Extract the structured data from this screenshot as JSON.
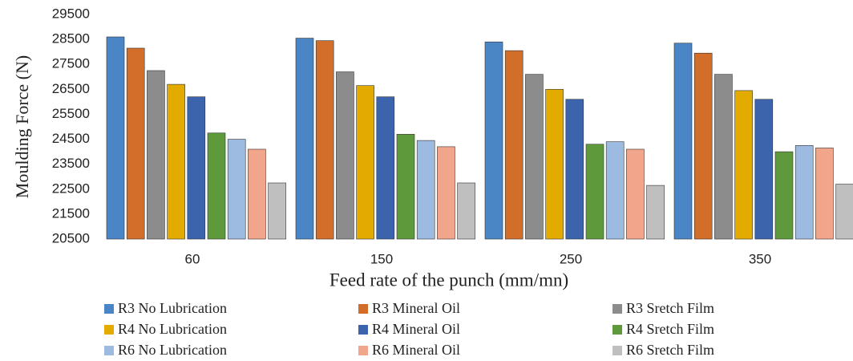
{
  "chart_data": {
    "type": "bar",
    "y_label": "Moulding Force (N)",
    "x_label": "Feed rate of the punch (mm/mn)",
    "categories": [
      "60",
      "150",
      "250",
      "350"
    ],
    "series": [
      {
        "name": "R3 No Lubrication",
        "color": "#4a86c5",
        "values": [
          28600,
          28550,
          28400,
          28350
        ]
      },
      {
        "name": "R3 Mineral Oil",
        "color": "#d36e2a",
        "values": [
          28150,
          28450,
          28050,
          27950
        ]
      },
      {
        "name": "R3 Sretch Film",
        "color": "#8c8c8c",
        "values": [
          27250,
          27200,
          27100,
          27100
        ]
      },
      {
        "name": "R4 No Lubrication",
        "color": "#e3aa00",
        "values": [
          26700,
          26650,
          26500,
          26450
        ]
      },
      {
        "name": "R4 Mineral Oil",
        "color": "#3b64ad",
        "values": [
          26200,
          26200,
          26100,
          26100
        ]
      },
      {
        "name": "R4 Sretch Film",
        "color": "#5e9a3c",
        "values": [
          24750,
          24700,
          24300,
          24000
        ]
      },
      {
        "name": "R6 No Lubrication",
        "color": "#9dbbe0",
        "values": [
          24500,
          24450,
          24400,
          24250
        ]
      },
      {
        "name": "R6 Mineral Oil",
        "color": "#f1a58a",
        "values": [
          24100,
          24200,
          24100,
          24150
        ]
      },
      {
        "name": "R6 Sretch Film",
        "color": "#bfbfbf",
        "values": [
          22750,
          22750,
          22650,
          22700
        ]
      }
    ],
    "ylim": [
      20500,
      29500
    ],
    "yticks": [
      20500,
      21500,
      22500,
      23500,
      24500,
      25500,
      26500,
      27500,
      28500,
      29500
    ],
    "grid": false
  }
}
